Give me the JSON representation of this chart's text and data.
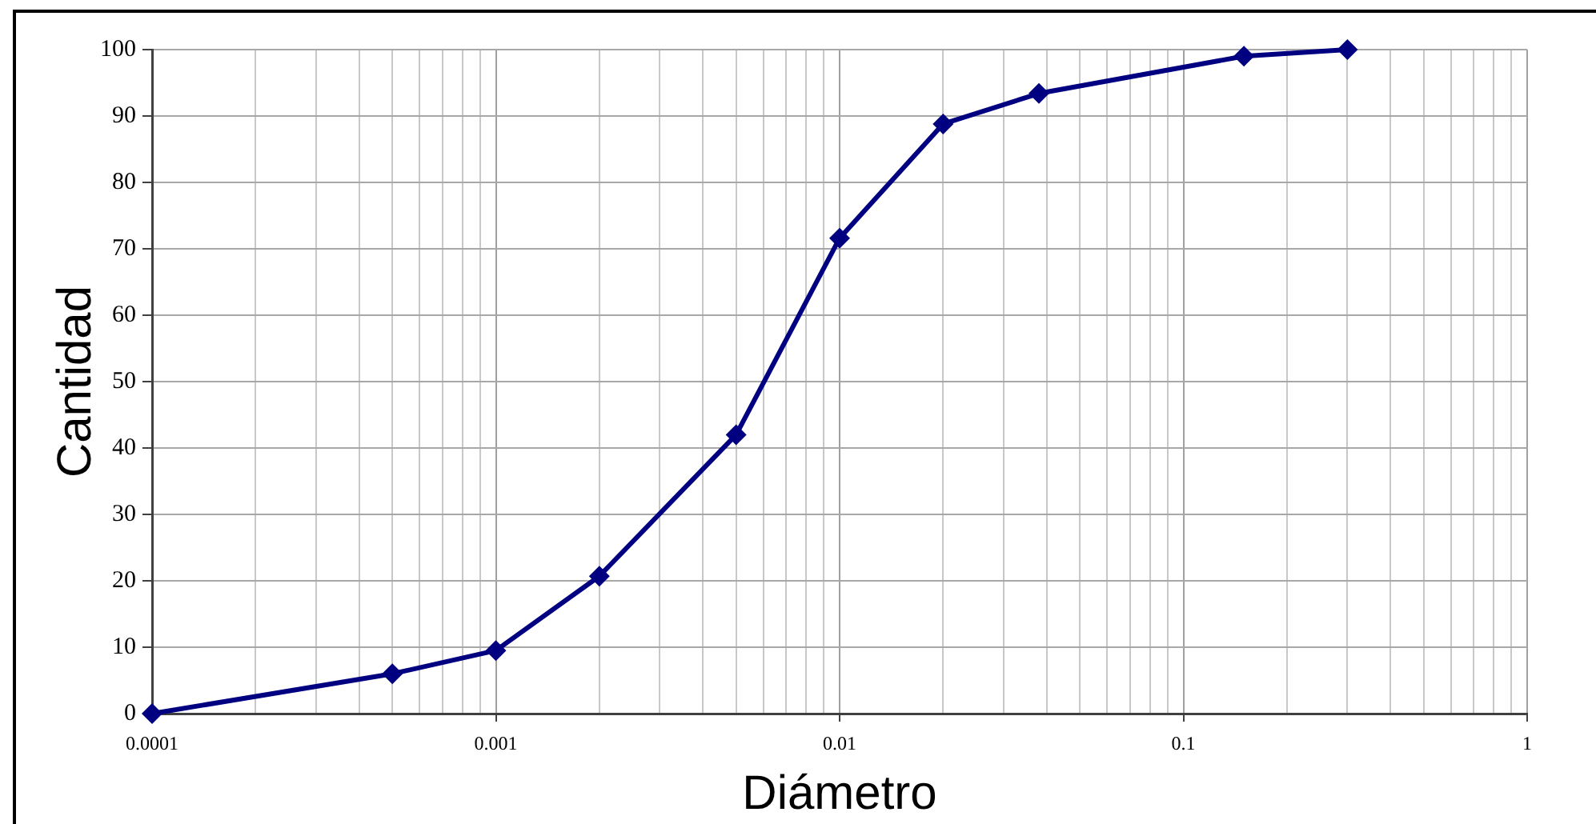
{
  "chart_data": {
    "type": "line",
    "xlabel": "Diámetro",
    "ylabel": "Cantidad",
    "x": [
      0.0001,
      0.0005,
      0.001,
      0.002,
      0.005,
      0.01,
      0.02,
      0.038,
      0.15,
      0.3
    ],
    "values": [
      0,
      6,
      9.5,
      20.7,
      42,
      71.6,
      88.8,
      93.4,
      99,
      100
    ],
    "color": "#000080",
    "log": "x",
    "xlim": [
      0.0001,
      1
    ],
    "xticks": [
      0.0001,
      {
        "value": 0.0002,
        "label": null
      },
      {
        "value": 0.0003,
        "label": null
      },
      {
        "value": 0.0004,
        "label": null
      },
      {
        "value": 0.0005,
        "label": null
      },
      {
        "value": 0.0006,
        "label": null
      },
      {
        "value": 0.0007,
        "label": null
      },
      {
        "value": 0.0008,
        "label": null
      },
      {
        "value": 0.0009,
        "label": null
      },
      0.001,
      {
        "value": 0.002,
        "label": null
      },
      {
        "value": 0.003,
        "label": null
      },
      {
        "value": 0.004,
        "label": null
      },
      {
        "value": 0.005,
        "label": null
      },
      {
        "value": 0.006,
        "label": null
      },
      {
        "value": 0.007,
        "label": null
      },
      {
        "value": 0.008,
        "label": null
      },
      {
        "value": 0.009,
        "label": null
      },
      0.01,
      {
        "value": 0.02,
        "label": null
      },
      {
        "value": 0.03,
        "label": null
      },
      {
        "value": 0.04,
        "label": null
      },
      {
        "value": 0.05,
        "label": null
      },
      {
        "value": 0.06,
        "label": null
      },
      {
        "value": 0.07,
        "label": null
      },
      {
        "value": 0.08,
        "label": null
      },
      {
        "value": 0.09,
        "label": null
      },
      0.1,
      {
        "value": 0.2,
        "label": null
      },
      {
        "value": 0.3,
        "label": null
      },
      {
        "value": 0.4,
        "label": null
      },
      {
        "value": 0.5,
        "label": null
      },
      {
        "value": 0.6,
        "label": null
      },
      {
        "value": 0.7,
        "label": null
      },
      {
        "value": 0.8,
        "label": null
      },
      {
        "value": 0.9,
        "label": null
      },
      1
    ],
    "ylim": [
      0,
      100
    ],
    "yticks": [
      0,
      10,
      20,
      30,
      40,
      50,
      60,
      70,
      80,
      90,
      100
    ],
    "grid": true,
    "marker": "diamond",
    "line_style": "solid"
  }
}
